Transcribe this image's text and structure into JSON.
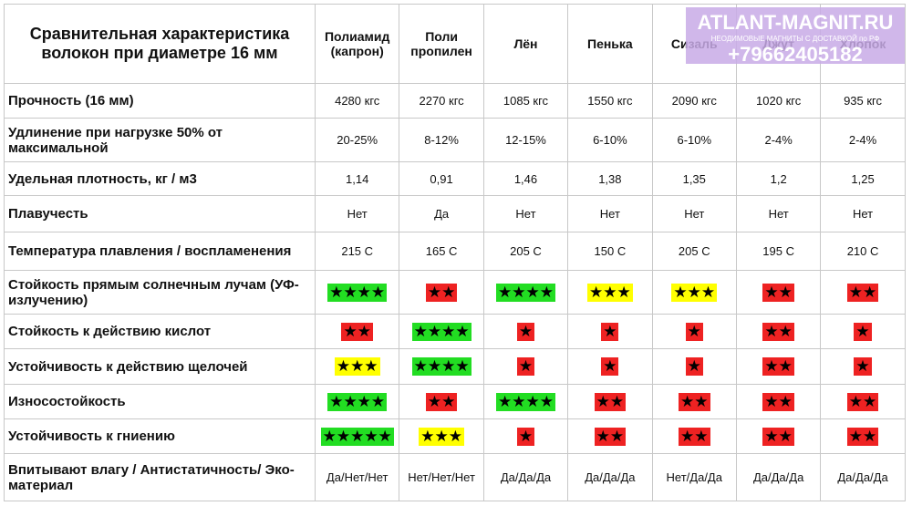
{
  "watermark": {
    "site": "ATLANT-MAGNIT.RU",
    "slogan": "НЕОДИМОВЫЕ МАГНИТЫ С ДОСТАВКОЙ по РФ",
    "phone": "+79662405182"
  },
  "table": {
    "title": "Сравнительная характеристика волокон при диаметре 16 мм",
    "columns": [
      "Полиамид (капрон)",
      "Поли пропилен",
      "Лён",
      "Пенька",
      "Сизаль",
      "Джут",
      "Хлопок"
    ],
    "rows": [
      {
        "label": "Прочность (16 мм)",
        "cells": [
          "4280 кгс",
          "2270 кгс",
          "1085 кгс",
          "1550 кгс",
          "2090 кгс",
          "1020 кгс",
          "935 кгс"
        ]
      },
      {
        "label": "Удлинение при нагрузке 50% от максимальной",
        "cells": [
          "20-25%",
          "8-12%",
          "12-15%",
          "6-10%",
          "6-10%",
          "2-4%",
          "2-4%"
        ]
      },
      {
        "label": "Удельная плотность, кг / м3",
        "cells": [
          "1,14",
          "0,91",
          "1,46",
          "1,38",
          "1,35",
          "1,2",
          "1,25"
        ]
      },
      {
        "label": "Плавучесть",
        "cells": [
          "Нет",
          "Да",
          "Нет",
          "Нет",
          "Нет",
          "Нет",
          "Нет"
        ]
      },
      {
        "label": "Температура плавления / воспламенения",
        "cells": [
          "215 С",
          "165 С",
          "205 С",
          "150 С",
          "205 С",
          "195 С",
          "210 С"
        ]
      },
      {
        "label": "Стойкость прямым солнечным лучам (УФ-излучению)",
        "cells": [
          {
            "text": "★★★★",
            "color": "#22dd22"
          },
          {
            "text": "★★",
            "color": "#ee2222"
          },
          {
            "text": "★★★★",
            "color": "#22dd22"
          },
          {
            "text": "★★★",
            "color": "#ffff00"
          },
          {
            "text": "★★★",
            "color": "#ffff00"
          },
          {
            "text": "★★",
            "color": "#ee2222"
          },
          {
            "text": "★★",
            "color": "#ee2222"
          }
        ]
      },
      {
        "label": "Стойкость к действию кислот",
        "cells": [
          {
            "text": "★★",
            "color": "#ee2222"
          },
          {
            "text": "★★★★",
            "color": "#22dd22"
          },
          {
            "text": "★",
            "color": "#ee2222"
          },
          {
            "text": "★",
            "color": "#ee2222"
          },
          {
            "text": "★",
            "color": "#ee2222"
          },
          {
            "text": "★★",
            "color": "#ee2222"
          },
          {
            "text": "★",
            "color": "#ee2222"
          }
        ]
      },
      {
        "label": "Устойчивость к действию щелочей",
        "cells": [
          {
            "text": "★★★",
            "color": "#ffff00"
          },
          {
            "text": "★★★★",
            "color": "#22dd22"
          },
          {
            "text": "★",
            "color": "#ee2222"
          },
          {
            "text": "★",
            "color": "#ee2222"
          },
          {
            "text": "★",
            "color": "#ee2222"
          },
          {
            "text": "★★",
            "color": "#ee2222"
          },
          {
            "text": "★",
            "color": "#ee2222"
          }
        ]
      },
      {
        "label": "Износостойкость",
        "cells": [
          {
            "text": "★★★★",
            "color": "#22dd22"
          },
          {
            "text": "★★",
            "color": "#ee2222"
          },
          {
            "text": "★★★★",
            "color": "#22dd22"
          },
          {
            "text": "★★",
            "color": "#ee2222"
          },
          {
            "text": "★★",
            "color": "#ee2222"
          },
          {
            "text": "★★",
            "color": "#ee2222"
          },
          {
            "text": "★★",
            "color": "#ee2222"
          }
        ]
      },
      {
        "label": "Устойчивость к гниению",
        "cells": [
          {
            "text": "★★★★★",
            "color": "#22dd22"
          },
          {
            "text": "★★★",
            "color": "#ffff00"
          },
          {
            "text": "★",
            "color": "#ee2222"
          },
          {
            "text": "★★",
            "color": "#ee2222"
          },
          {
            "text": "★★",
            "color": "#ee2222"
          },
          {
            "text": "★★",
            "color": "#ee2222"
          },
          {
            "text": "★★",
            "color": "#ee2222"
          }
        ]
      },
      {
        "label": "Впитывают влагу / Антистатичность/ Эко-материал",
        "cells": [
          "Да/Нет/Нет",
          "Нет/Нет/Нет",
          "Да/Да/Да",
          "Да/Да/Да",
          "Нет/Да/Да",
          "Да/Да/Да",
          "Да/Да/Да"
        ]
      }
    ]
  }
}
